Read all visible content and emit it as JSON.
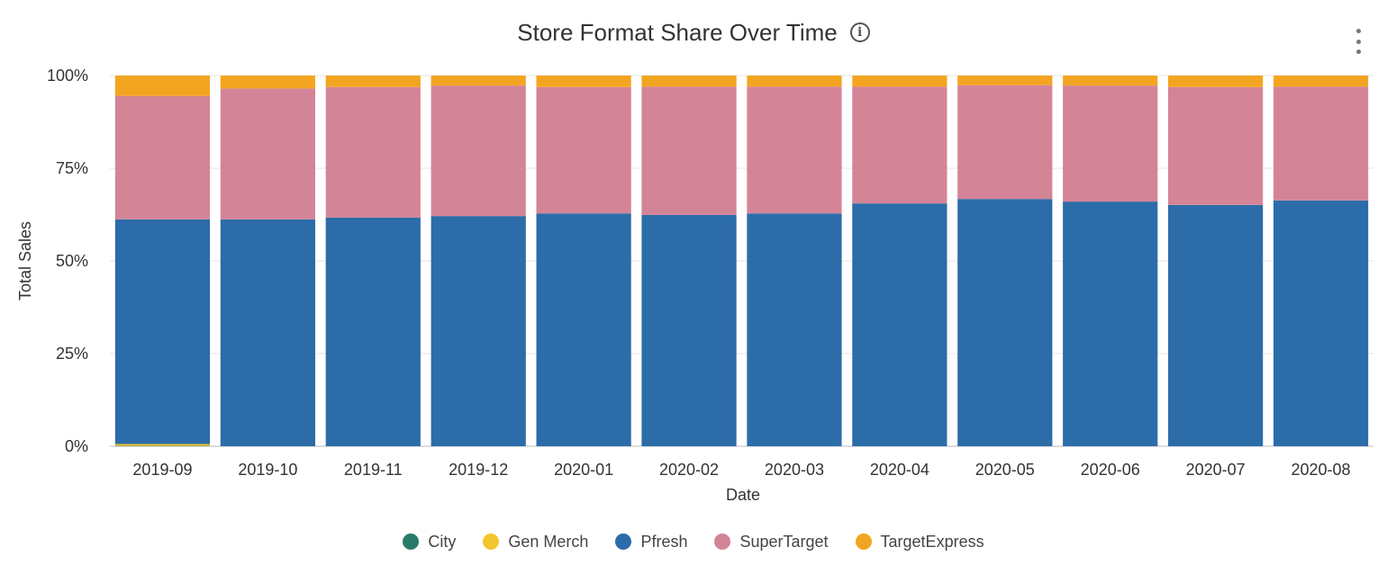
{
  "header": {
    "title": "Store Format Share Over Time",
    "info_icon": "info-icon",
    "menu_icon": "kebab-menu-icon"
  },
  "chart_data": {
    "type": "bar",
    "stacked": true,
    "normalized": true,
    "title": "Store Format Share Over Time",
    "xlabel": "Date",
    "ylabel": "Total Sales",
    "ylim": [
      0,
      100
    ],
    "yticks": [
      "0%",
      "25%",
      "50%",
      "75%",
      "100%"
    ],
    "grid": true,
    "legend_position": "bottom",
    "categories": [
      "2019-09",
      "2019-10",
      "2019-11",
      "2019-12",
      "2020-01",
      "2020-02",
      "2020-03",
      "2020-04",
      "2020-05",
      "2020-06",
      "2020-07",
      "2020-08"
    ],
    "series": [
      {
        "name": "City",
        "color": "#2a7a6b",
        "values": [
          0.1,
          0,
          0,
          0,
          0,
          0,
          0,
          0,
          0,
          0,
          0,
          0
        ]
      },
      {
        "name": "Gen Merch",
        "color": "#f2c62f",
        "values": [
          0.5,
          0,
          0,
          0,
          0,
          0,
          0,
          0,
          0,
          0,
          0,
          0
        ]
      },
      {
        "name": "Pfresh",
        "color": "#2c6ca8",
        "values": [
          60.6,
          61.2,
          61.7,
          62.1,
          62.8,
          62.4,
          62.8,
          65.5,
          66.7,
          66.0,
          65.1,
          66.3
        ]
      },
      {
        "name": "SuperTarget",
        "color": "#d48497",
        "values": [
          33.3,
          35.3,
          35.2,
          35.2,
          34.1,
          34.6,
          34.2,
          31.5,
          30.7,
          31.3,
          31.8,
          30.7
        ]
      },
      {
        "name": "TargetExpress",
        "color": "#f3a521",
        "values": [
          5.5,
          3.5,
          3.1,
          2.7,
          3.1,
          3.0,
          3.0,
          3.0,
          2.6,
          2.7,
          3.1,
          3.0
        ]
      }
    ]
  }
}
